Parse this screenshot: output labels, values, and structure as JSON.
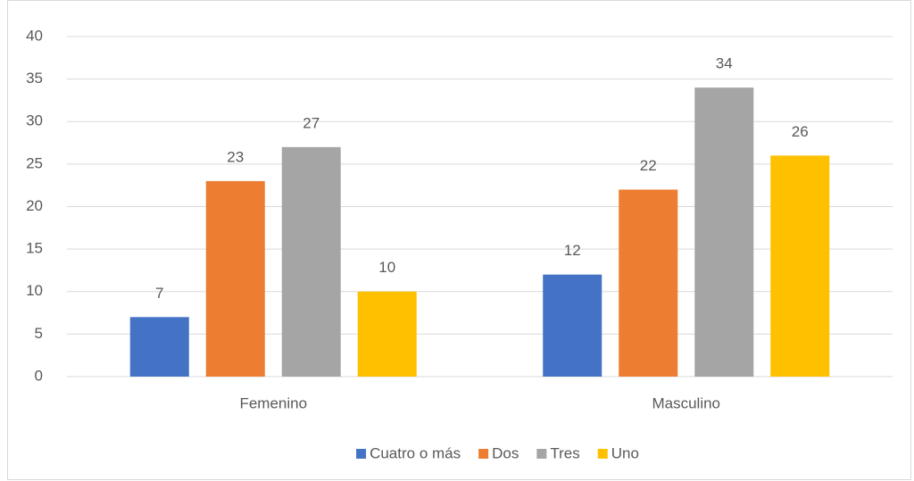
{
  "chart_data": {
    "type": "bar",
    "categories": [
      "Femenino",
      "Masculino"
    ],
    "series": [
      {
        "name": "Cuatro o más",
        "color": "#4472c4",
        "values": [
          7,
          12
        ]
      },
      {
        "name": "Dos",
        "color": "#ed7d31",
        "values": [
          23,
          22
        ]
      },
      {
        "name": "Tres",
        "color": "#a5a5a5",
        "values": [
          27,
          34
        ]
      },
      {
        "name": "Uno",
        "color": "#ffc000",
        "values": [
          10,
          26
        ]
      }
    ],
    "ylim": [
      0,
      40
    ],
    "yticks": [
      0,
      5,
      10,
      15,
      20,
      25,
      30,
      35,
      40
    ],
    "grid": true,
    "legend": "bottom"
  }
}
